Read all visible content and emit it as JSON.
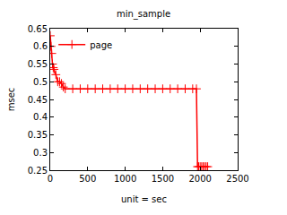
{
  "chart_data": {
    "type": "line",
    "title": "min_sample",
    "x_label": "unit = sec",
    "y_label": "msec",
    "x": [
      0,
      10,
      20,
      30,
      40,
      50,
      75,
      100,
      125,
      150,
      175,
      200,
      300,
      400,
      500,
      600,
      700,
      800,
      900,
      1000,
      1100,
      1200,
      1300,
      1400,
      1500,
      1600,
      1700,
      1800,
      1900,
      1950,
      1965,
      1980,
      2000,
      2020,
      2040,
      2060,
      2080,
      2100
    ],
    "series": [
      {
        "name": "page",
        "color": "#ff0000",
        "marker": "cross",
        "line_style": "solid",
        "values": [
          0.63,
          0.6,
          0.58,
          0.55,
          0.54,
          0.535,
          0.52,
          0.5,
          0.5,
          0.495,
          0.485,
          0.48,
          0.48,
          0.48,
          0.48,
          0.48,
          0.48,
          0.48,
          0.48,
          0.48,
          0.48,
          0.48,
          0.48,
          0.48,
          0.48,
          0.48,
          0.48,
          0.48,
          0.48,
          0.48,
          0.26,
          0.26,
          0.26,
          0.26,
          0.26,
          0.26,
          0.26,
          0.26
        ]
      }
    ],
    "xlim": [
      0,
      2500
    ],
    "ylim": [
      0.25,
      0.65
    ],
    "xticks": [
      0,
      500,
      1000,
      1500,
      2000,
      2500
    ],
    "yticks": [
      0.25,
      0.3,
      0.35,
      0.4,
      0.45,
      0.5,
      0.55,
      0.6,
      0.65
    ],
    "grid": false,
    "legend": "top left"
  }
}
